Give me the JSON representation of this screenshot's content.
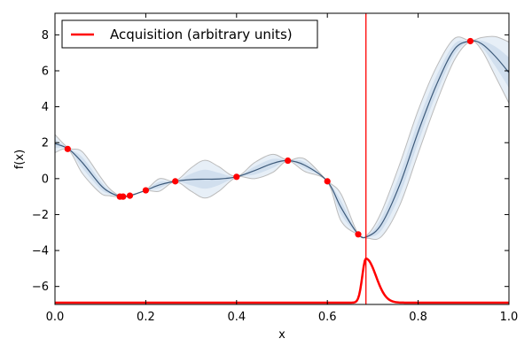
{
  "chart_data": {
    "type": "line",
    "title": "",
    "xlabel": "x",
    "ylabel": "f(x)",
    "xlim": [
      0.0,
      1.0
    ],
    "ylim": [
      -7.0,
      9.2
    ],
    "xticks": [
      "0.0",
      "0.2",
      "0.4",
      "0.6",
      "0.8",
      "1.0"
    ],
    "yticks": [
      "−6",
      "−4",
      "−2",
      "0",
      "2",
      "4",
      "6",
      "8"
    ],
    "grid": false,
    "legend_position": "top-left",
    "series": [
      {
        "kind": "gp-mean-with-uncertainty",
        "color": "#3d5a7a",
        "band_color": "#c7d8ea",
        "bound_color": "#bbbbbb",
        "x": [
          0.0,
          0.03,
          0.06,
          0.1,
          0.12,
          0.143,
          0.15,
          0.165,
          0.2,
          0.23,
          0.265,
          0.3,
          0.33,
          0.36,
          0.4,
          0.44,
          0.48,
          0.513,
          0.55,
          0.6,
          0.63,
          0.668,
          0.69,
          0.72,
          0.76,
          0.8,
          0.84,
          0.88,
          0.915,
          0.94,
          0.97,
          1.0
        ],
        "mean": [
          1.95,
          1.65,
          0.9,
          -0.35,
          -0.75,
          -1.0,
          -1.0,
          -0.95,
          -0.65,
          -0.35,
          -0.15,
          -0.05,
          -0.03,
          -0.02,
          0.1,
          0.45,
          0.85,
          1.0,
          0.75,
          -0.15,
          -1.6,
          -3.1,
          -3.2,
          -2.5,
          -0.3,
          2.6,
          5.2,
          7.2,
          7.65,
          7.5,
          6.8,
          5.9
        ],
        "sigma": [
          0.5,
          0.05,
          0.6,
          0.45,
          0.2,
          0.02,
          0.02,
          0.02,
          0.02,
          0.35,
          0.02,
          0.65,
          1.05,
          0.7,
          0.02,
          0.45,
          0.5,
          0.02,
          0.35,
          0.02,
          0.75,
          0.02,
          0.12,
          0.7,
          1.15,
          1.2,
          1.0,
          0.6,
          0.02,
          0.35,
          1.1,
          1.7
        ]
      }
    ],
    "observations": {
      "color": "#ff0000",
      "x": [
        0.028,
        0.143,
        0.15,
        0.165,
        0.2,
        0.265,
        0.4,
        0.513,
        0.6,
        0.668,
        0.915
      ],
      "y": [
        1.65,
        -1.0,
        -1.0,
        -0.95,
        -0.65,
        -0.15,
        0.1,
        1.0,
        -0.15,
        -3.1,
        7.65
      ]
    },
    "acquisition": {
      "name": "Acquisition (arbitrary units)",
      "color": "#ff0000",
      "baseline": -6.9,
      "peak_x": 0.685,
      "peak_y": -4.45
    },
    "vline": {
      "x": 0.685,
      "color": "#ff0000"
    }
  }
}
